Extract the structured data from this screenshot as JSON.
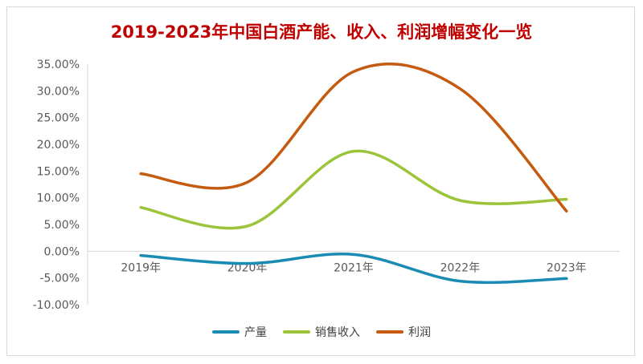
{
  "chart_data": {
    "type": "line",
    "title": "2019-2023年中国白酒产能、收入、利润增幅变化一览",
    "categories": [
      "2019年",
      "2020年",
      "2021年",
      "2022年",
      "2023年"
    ],
    "ylim": [
      -10,
      35
    ],
    "yticks": [
      "35.00%",
      "30.00%",
      "25.00%",
      "20.00%",
      "15.00%",
      "10.00%",
      "5.00%",
      "0.00%",
      "-5.00%",
      "-10.00%"
    ],
    "ytick_values": [
      35,
      30,
      25,
      20,
      15,
      10,
      5,
      0,
      -5,
      -10
    ],
    "smooth": true,
    "grid": false,
    "legend_position": "bottom",
    "series": [
      {
        "name": "产量",
        "color": "#1a8bb3",
        "values": [
          -0.8,
          -2.3,
          -0.6,
          -5.6,
          -5.1
        ]
      },
      {
        "name": "销售收入",
        "color": "#9cc43a",
        "values": [
          8.2,
          4.7,
          18.7,
          9.5,
          9.7
        ]
      },
      {
        "name": "利润",
        "color": "#c55a11",
        "values": [
          14.5,
          12.9,
          33.6,
          30.4,
          7.5
        ]
      }
    ]
  }
}
